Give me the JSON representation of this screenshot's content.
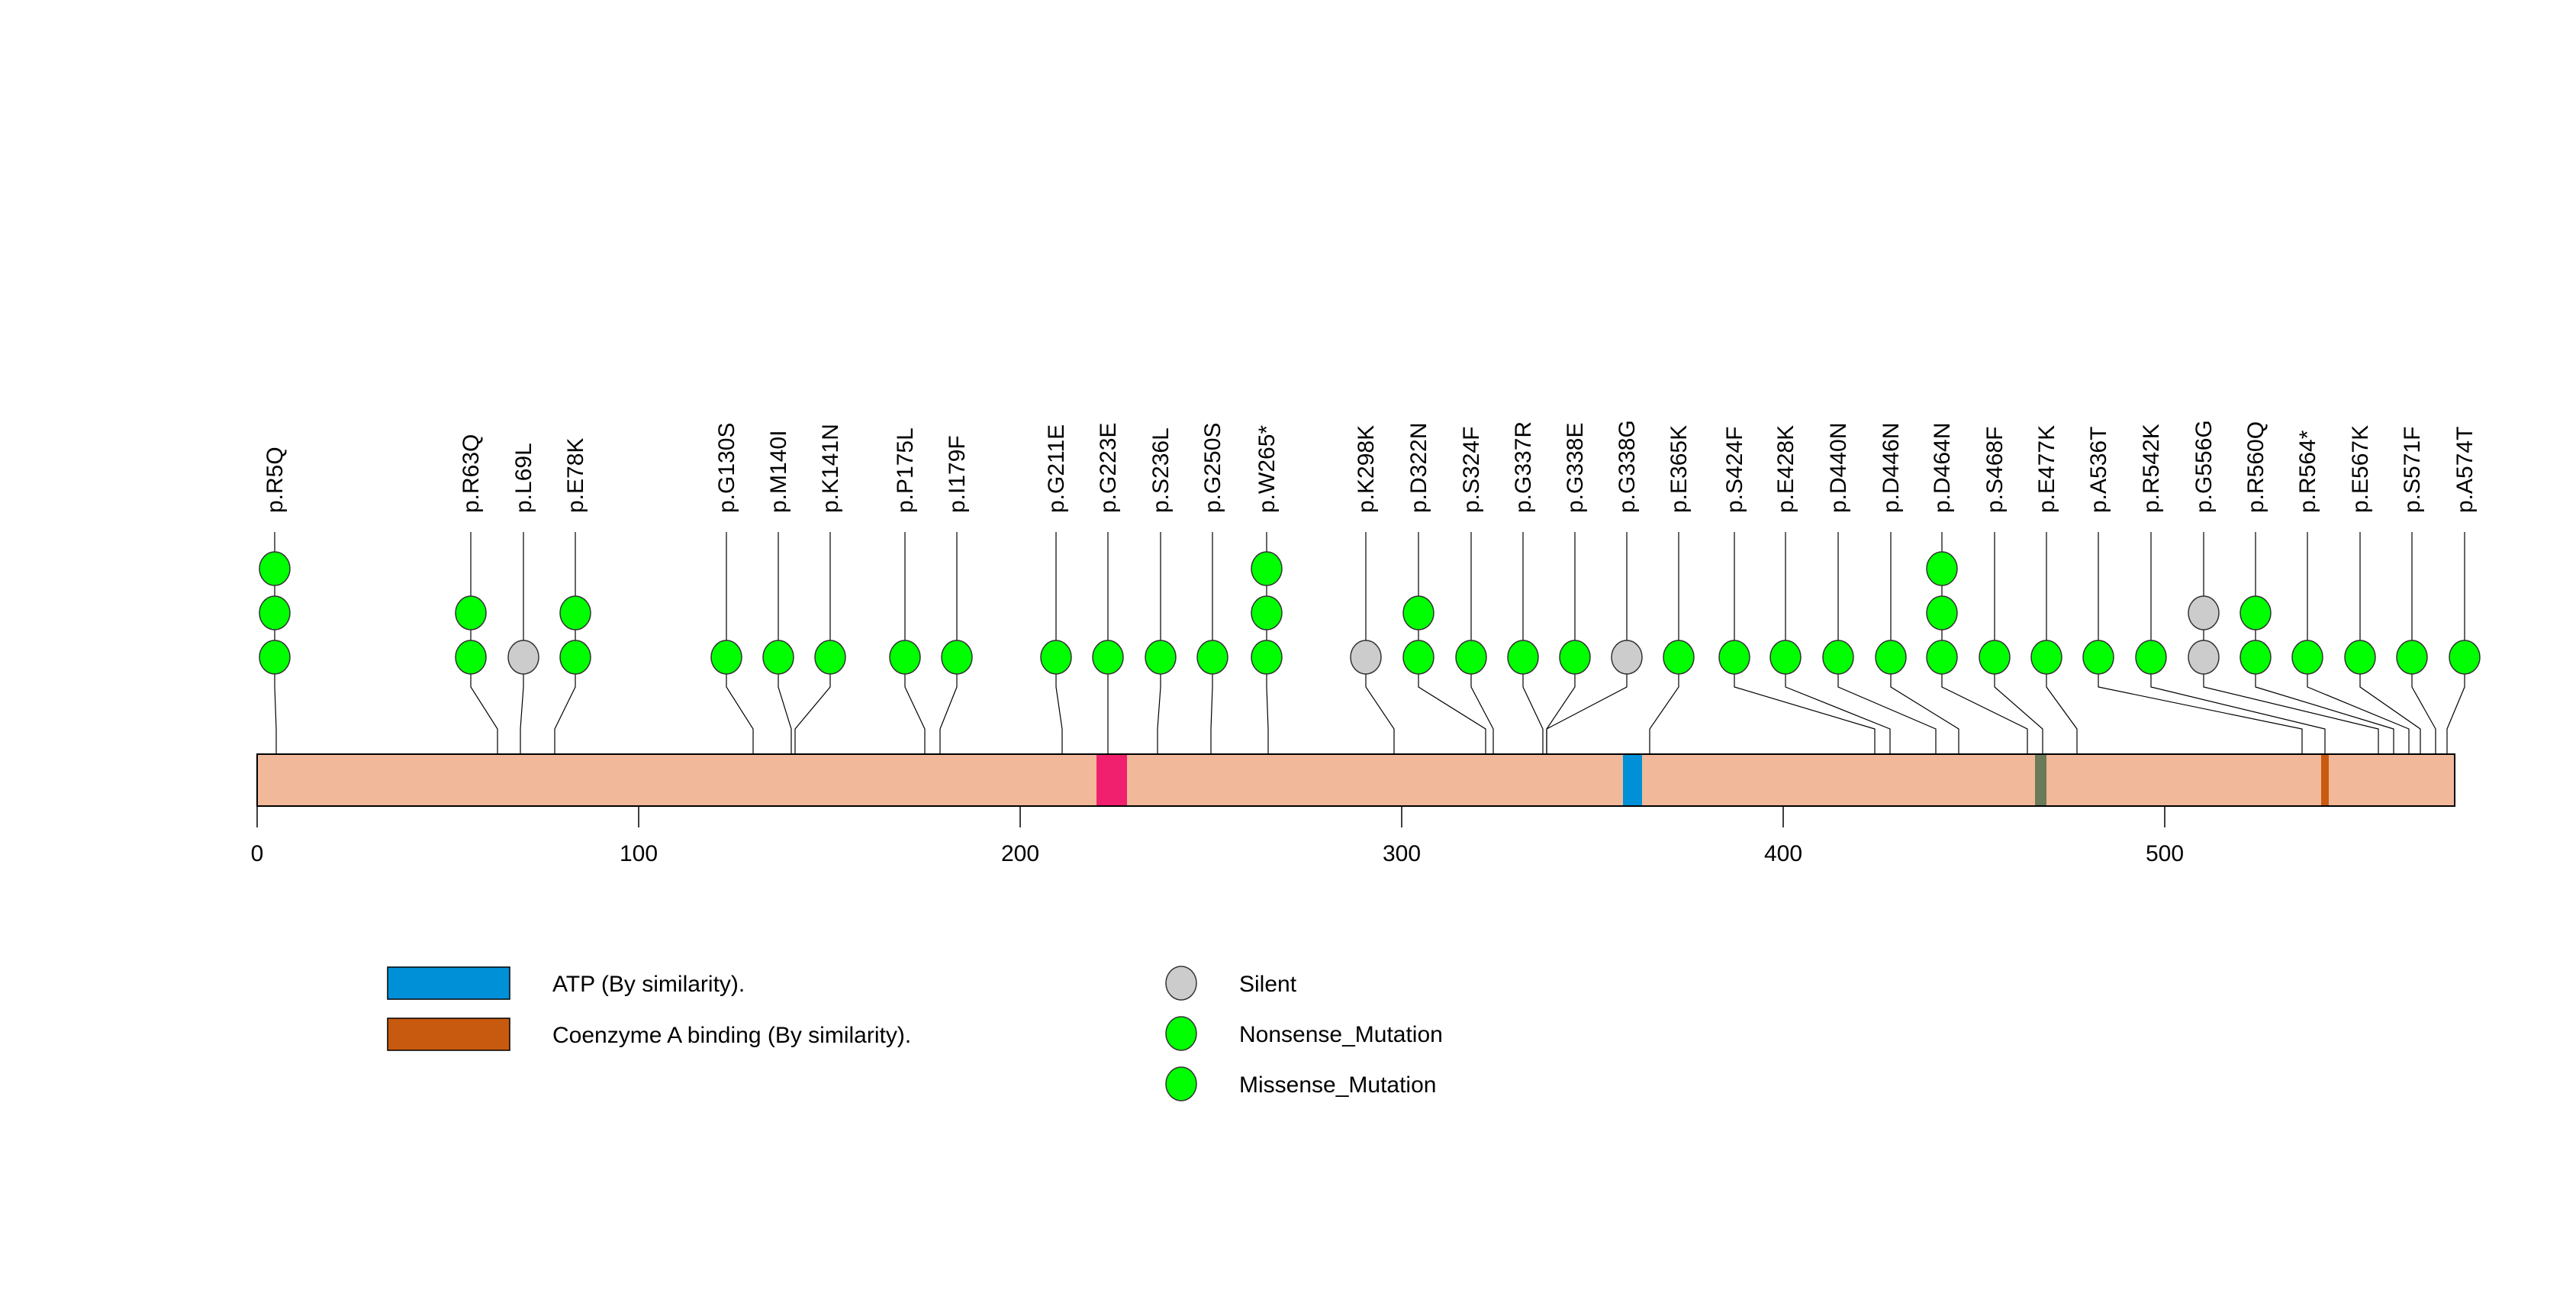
{
  "chart_data": {
    "type": "lollipop",
    "title": "",
    "xlabel": "",
    "ylabel": "",
    "protein_length": 576,
    "xlim": [
      0,
      576
    ],
    "x_ticks": [
      0,
      100,
      200,
      300,
      400,
      500
    ],
    "x_tick_labels": [
      "0",
      "100",
      "200",
      "300",
      "400",
      "500"
    ],
    "colors": {
      "protein": "#F2B89A",
      "Silent": "#CCCCCC",
      "Nonsense_Mutation": "#00FF00",
      "Missense_Mutation": "#00FF00"
    },
    "domains": [
      {
        "name": "unlabeled-region",
        "start": 220,
        "end": 228,
        "color": "#F0206E"
      },
      {
        "name": "ATP (By similarity).",
        "start": 358,
        "end": 363,
        "color": "#0090D8"
      },
      {
        "name": "unlabeled-region",
        "start": 466,
        "end": 469,
        "color": "#6B7A58"
      },
      {
        "name": "Coenzyme A binding (By similarity).",
        "start": 541,
        "end": 543,
        "color": "#C85A10"
      }
    ],
    "mutations": [
      {
        "label": "p.R5Q",
        "pos": 5,
        "types": [
          "Missense_Mutation",
          "Missense_Mutation",
          "Missense_Mutation"
        ]
      },
      {
        "label": "p.R63Q",
        "pos": 63,
        "types": [
          "Missense_Mutation",
          "Missense_Mutation"
        ]
      },
      {
        "label": "p.L69L",
        "pos": 69,
        "types": [
          "Silent"
        ]
      },
      {
        "label": "p.E78K",
        "pos": 78,
        "types": [
          "Missense_Mutation",
          "Missense_Mutation"
        ]
      },
      {
        "label": "p.G130S",
        "pos": 130,
        "types": [
          "Missense_Mutation"
        ]
      },
      {
        "label": "p.M140I",
        "pos": 140,
        "types": [
          "Missense_Mutation"
        ]
      },
      {
        "label": "p.K141N",
        "pos": 141,
        "types": [
          "Missense_Mutation"
        ]
      },
      {
        "label": "p.P175L",
        "pos": 175,
        "types": [
          "Missense_Mutation"
        ]
      },
      {
        "label": "p.I179F",
        "pos": 179,
        "types": [
          "Missense_Mutation"
        ]
      },
      {
        "label": "p.G211E",
        "pos": 211,
        "types": [
          "Missense_Mutation"
        ]
      },
      {
        "label": "p.G223E",
        "pos": 223,
        "types": [
          "Missense_Mutation"
        ]
      },
      {
        "label": "p.S236L",
        "pos": 236,
        "types": [
          "Missense_Mutation"
        ]
      },
      {
        "label": "p.G250S",
        "pos": 250,
        "types": [
          "Missense_Mutation"
        ]
      },
      {
        "label": "p.W265*",
        "pos": 265,
        "types": [
          "Nonsense_Mutation",
          "Nonsense_Mutation",
          "Nonsense_Mutation"
        ]
      },
      {
        "label": "p.K298K",
        "pos": 298,
        "types": [
          "Silent"
        ]
      },
      {
        "label": "p.D322N",
        "pos": 322,
        "types": [
          "Missense_Mutation",
          "Missense_Mutation"
        ]
      },
      {
        "label": "p.S324F",
        "pos": 324,
        "types": [
          "Missense_Mutation"
        ]
      },
      {
        "label": "p.G337R",
        "pos": 337,
        "types": [
          "Missense_Mutation"
        ]
      },
      {
        "label": "p.G338E",
        "pos": 338,
        "types": [
          "Missense_Mutation"
        ]
      },
      {
        "label": "p.G338G",
        "pos": 338,
        "types": [
          "Silent"
        ]
      },
      {
        "label": "p.E365K",
        "pos": 365,
        "types": [
          "Missense_Mutation"
        ]
      },
      {
        "label": "p.S424F",
        "pos": 424,
        "types": [
          "Missense_Mutation"
        ]
      },
      {
        "label": "p.E428K",
        "pos": 428,
        "types": [
          "Missense_Mutation"
        ]
      },
      {
        "label": "p.D440N",
        "pos": 440,
        "types": [
          "Missense_Mutation"
        ]
      },
      {
        "label": "p.D446N",
        "pos": 446,
        "types": [
          "Missense_Mutation"
        ]
      },
      {
        "label": "p.D464N",
        "pos": 464,
        "types": [
          "Missense_Mutation",
          "Missense_Mutation",
          "Missense_Mutation"
        ]
      },
      {
        "label": "p.S468F",
        "pos": 468,
        "types": [
          "Missense_Mutation"
        ]
      },
      {
        "label": "p.E477K",
        "pos": 477,
        "types": [
          "Missense_Mutation"
        ]
      },
      {
        "label": "p.A536T",
        "pos": 536,
        "types": [
          "Missense_Mutation"
        ]
      },
      {
        "label": "p.R542K",
        "pos": 542,
        "types": [
          "Missense_Mutation"
        ]
      },
      {
        "label": "p.G556G",
        "pos": 556,
        "types": [
          "Silent",
          "Silent"
        ]
      },
      {
        "label": "p.R560Q",
        "pos": 560,
        "types": [
          "Missense_Mutation",
          "Missense_Mutation"
        ]
      },
      {
        "label": "p.R564*",
        "pos": 564,
        "types": [
          "Nonsense_Mutation"
        ]
      },
      {
        "label": "p.E567K",
        "pos": 567,
        "types": [
          "Missense_Mutation"
        ]
      },
      {
        "label": "p.S571F",
        "pos": 571,
        "types": [
          "Missense_Mutation"
        ]
      },
      {
        "label": "p.A574T",
        "pos": 574,
        "types": [
          "Missense_Mutation"
        ]
      }
    ],
    "legend": {
      "placement": "bottom-left",
      "domains": [
        {
          "label": "ATP (By similarity).",
          "color": "#0090D8"
        },
        {
          "label": "Coenzyme A binding (By similarity).",
          "color": "#C85A10"
        }
      ],
      "mutation_types": [
        {
          "label": "Silent",
          "color": "#CCCCCC"
        },
        {
          "label": "Nonsense_Mutation",
          "color": "#00FF00"
        },
        {
          "label": "Missense_Mutation",
          "color": "#00FF00"
        }
      ]
    }
  }
}
